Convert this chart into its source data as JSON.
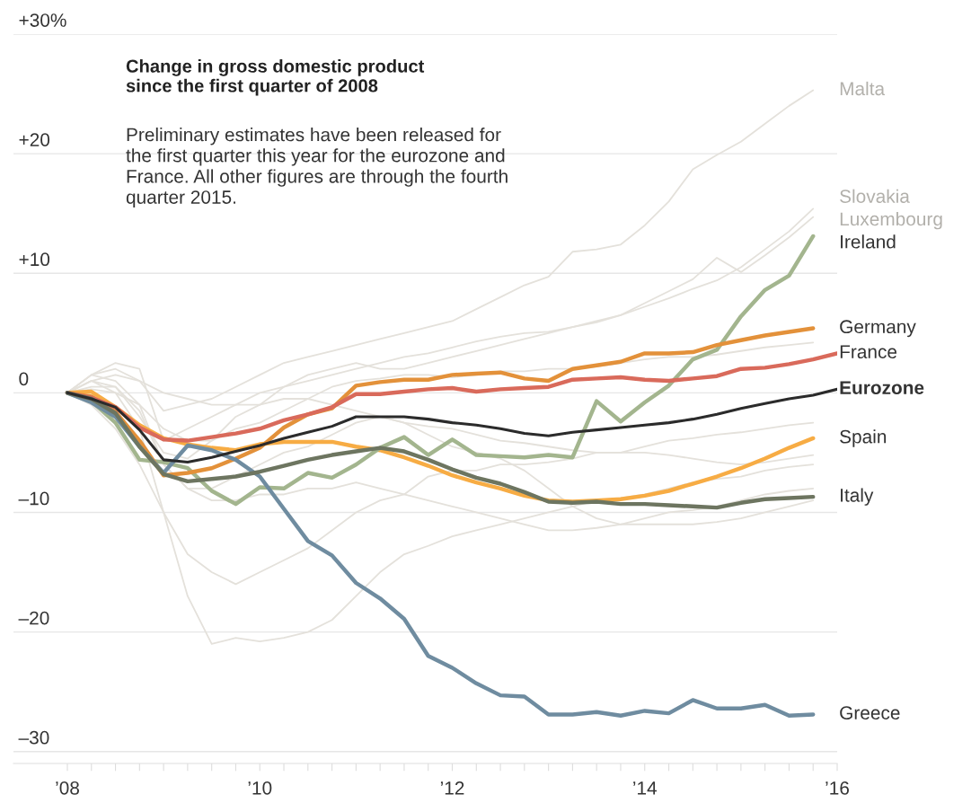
{
  "chart_data": {
    "type": "line",
    "title": "Change in gross domestic product\nsince the first quarter of 2008",
    "subtitle": "Preliminary estimates have been released for\nthe first quarter this year for the eurozone and\nFrance. All other figures are through the fourth\nquarter 2015.",
    "x": [
      2008,
      2008.25,
      2008.5,
      2008.75,
      2009,
      2009.25,
      2009.5,
      2009.75,
      2010,
      2010.25,
      2010.5,
      2010.75,
      2011,
      2011.25,
      2011.5,
      2011.75,
      2012,
      2012.25,
      2012.5,
      2012.75,
      2013,
      2013.25,
      2013.5,
      2013.75,
      2014,
      2014.25,
      2014.5,
      2014.75,
      2015,
      2015.25,
      2015.5,
      2015.75,
      2016
    ],
    "xlim": [
      2007.44,
      2016
    ],
    "xticks": [
      {
        "value": 2008,
        "label": "’08"
      },
      {
        "value": 2008.25,
        "label": null
      },
      {
        "value": 2008.5,
        "label": null
      },
      {
        "value": 2008.75,
        "label": null
      },
      {
        "value": 2009,
        "label": null
      },
      {
        "value": 2009.25,
        "label": null
      },
      {
        "value": 2009.5,
        "label": null
      },
      {
        "value": 2009.75,
        "label": null
      },
      {
        "value": 2010,
        "label": "’10"
      },
      {
        "value": 2010.25,
        "label": null
      },
      {
        "value": 2010.5,
        "label": null
      },
      {
        "value": 2010.75,
        "label": null
      },
      {
        "value": 2011,
        "label": null
      },
      {
        "value": 2011.25,
        "label": null
      },
      {
        "value": 2011.5,
        "label": null
      },
      {
        "value": 2011.75,
        "label": null
      },
      {
        "value": 2012,
        "label": "’12"
      },
      {
        "value": 2012.25,
        "label": null
      },
      {
        "value": 2012.5,
        "label": null
      },
      {
        "value": 2012.75,
        "label": null
      },
      {
        "value": 2013,
        "label": null
      },
      {
        "value": 2013.25,
        "label": null
      },
      {
        "value": 2013.5,
        "label": null
      },
      {
        "value": 2013.75,
        "label": null
      },
      {
        "value": 2014,
        "label": "’14"
      },
      {
        "value": 2014.25,
        "label": null
      },
      {
        "value": 2014.5,
        "label": null
      },
      {
        "value": 2014.75,
        "label": null
      },
      {
        "value": 2015,
        "label": null
      },
      {
        "value": 2015.25,
        "label": null
      },
      {
        "value": 2015.5,
        "label": null
      },
      {
        "value": 2015.75,
        "label": null
      },
      {
        "value": 2016,
        "label": "’16"
      }
    ],
    "ylim": [
      -31,
      30
    ],
    "yticks": [
      {
        "value": -30,
        "label": "–30"
      },
      {
        "value": -20,
        "label": "–20"
      },
      {
        "value": -10,
        "label": "–10"
      },
      0,
      {
        "value": 10,
        "label": "+10"
      },
      {
        "value": 20,
        "label": "+20"
      },
      {
        "value": 30,
        "label": "+30%"
      }
    ],
    "grid": "y",
    "legend": false,
    "series": [
      {
        "color": "#e4e1db",
        "values": [
          0,
          -1,
          -3,
          -6,
          -10,
          -13.5,
          -15,
          -16,
          -15,
          -14,
          -13,
          -11.5,
          -10,
          -9,
          -8.5,
          -7,
          -6.5,
          -6.5,
          -6,
          -6,
          -5.8,
          -5.5,
          -5,
          -5,
          -4.5,
          -4,
          -3.8,
          -3.5,
          -3.3,
          -3,
          -2.7,
          -2.5,
          null
        ]
      },
      {
        "color": "#e4e1db",
        "values": [
          0,
          1,
          0,
          -3,
          -10,
          -17,
          -21,
          -20.5,
          -20.8,
          -20.5,
          -20,
          -19,
          -17,
          -15,
          -13.5,
          -12.8,
          -12,
          -11.5,
          -11,
          -10.5,
          -10,
          -9.5,
          -9,
          -8.8,
          -8.5,
          -8,
          -7.5,
          -7.2,
          -7,
          -6.5,
          -6.2,
          -6,
          null
        ]
      },
      {
        "color": "#e4e1db",
        "values": [
          0,
          1,
          1.5,
          1,
          0,
          -0.5,
          -1,
          -1,
          -1,
          -0.5,
          -0.5,
          -1,
          -1.5,
          -2,
          -2.5,
          -3.5,
          -4.5,
          -5,
          -5.5,
          -6.5,
          -8,
          -9.5,
          -10.5,
          -11,
          -11,
          -11,
          -11,
          -10.8,
          -10.5,
          -10,
          -9.5,
          -9,
          null
        ]
      },
      {
        "color": "#e4e1db",
        "values": [
          0,
          1.5,
          1,
          -1,
          -6,
          -8,
          -8,
          -7,
          -6,
          -5,
          -4.5,
          -3.5,
          -2.5,
          -2,
          -2.5,
          -2.8,
          -3,
          -3.5,
          -4,
          -4.2,
          -4.5,
          -4.8,
          -5,
          -5,
          -5,
          -5.2,
          -5.5,
          -5.8,
          -6,
          -5.8,
          -5.5,
          -5.2,
          null
        ]
      },
      {
        "color": "#e4e1db",
        "values": [
          0,
          0.5,
          0.5,
          -1.5,
          -6,
          -8,
          -9,
          -9,
          -8.5,
          -8.5,
          -8,
          -8,
          -7.5,
          -8,
          -8.5,
          -9,
          -9.5,
          -10,
          -10.5,
          -11,
          -11.5,
          -11.5,
          -11.3,
          -11,
          -10.5,
          -10,
          -9.8,
          -9.5,
          -9,
          -8.5,
          -8.2,
          -8,
          null
        ]
      },
      {
        "color": "#e4e1db",
        "values": [
          0,
          0.3,
          0,
          -1,
          -3,
          -4,
          -4,
          -3,
          -2.5,
          -1.5,
          -0.5,
          0.5,
          1,
          1.2,
          1.5,
          1.5,
          1.3,
          1.5,
          1.8,
          1.8,
          2,
          2,
          2.2,
          2.5,
          2.8,
          3,
          3,
          3.2,
          3.5,
          3.8,
          4,
          4.2,
          null
        ]
      },
      {
        "name": "Malta",
        "color": "#e4e1db",
        "values": [
          0,
          1.5,
          2.0,
          1.0,
          -1.5,
          -1.0,
          -0.5,
          0.5,
          1.5,
          2.5,
          3.0,
          3.5,
          4.0,
          4.5,
          5.0,
          5.5,
          6.0,
          7.0,
          8.0,
          9.0,
          9.7,
          11.8,
          12.0,
          12.4,
          14.0,
          16.0,
          18.7,
          19.9,
          21.0,
          22.5,
          24.0,
          25.3,
          null
        ]
      },
      {
        "name": "Slovakia",
        "color": "#e4e1db",
        "values": [
          0,
          1.5,
          2.5,
          2.0,
          -4.0,
          -3.0,
          -2.0,
          -1.0,
          0,
          0.5,
          1.0,
          1.5,
          2.0,
          2.5,
          3.0,
          3.3,
          3.8,
          4.3,
          4.7,
          5.0,
          5.1,
          5.5,
          5.9,
          6.5,
          7.2,
          7.9,
          8.7,
          9.4,
          10.5,
          12.0,
          13.5,
          15.4,
          null
        ]
      },
      {
        "name": "Luxembourg",
        "color": "#e4e1db",
        "values": [
          0,
          1.0,
          0.5,
          -2.0,
          -5.0,
          -5.5,
          -4.0,
          -2.0,
          -1.0,
          0.5,
          1.5,
          2.0,
          2.5,
          2.0,
          2.0,
          2.5,
          3.0,
          3.5,
          4.0,
          4.5,
          5.0,
          5.5,
          6.0,
          6.5,
          7.5,
          8.5,
          9.5,
          11.3,
          10.1,
          11.5,
          13.0,
          14.7,
          null
        ]
      },
      {
        "name": "Greece",
        "color": "#6f8ca0",
        "values": [
          0,
          -0.8,
          -2,
          -4.5,
          -6.7,
          -4.4,
          -4.8,
          -5.6,
          -7,
          -9.7,
          -12.4,
          -13.6,
          -15.9,
          -17.2,
          -18.9,
          -22,
          -23,
          -24.3,
          -25.3,
          -25.4,
          -26.9,
          -26.9,
          -26.7,
          -27,
          -26.6,
          -26.8,
          -25.7,
          -26.4,
          -26.4,
          -26.1,
          -27,
          -26.9,
          null
        ]
      },
      {
        "name": "Ireland",
        "color": "#a3b58e",
        "values": [
          0,
          -0.7,
          -2.5,
          -5.6,
          -5.8,
          -6.3,
          -8.2,
          -9.3,
          -7.9,
          -8.0,
          -6.7,
          -7.1,
          -6.0,
          -4.6,
          -3.7,
          -5.2,
          -3.9,
          -5.2,
          -5.3,
          -5.4,
          -5.2,
          -5.4,
          -0.7,
          -2.4,
          -0.8,
          0.6,
          2.8,
          3.6,
          6.4,
          8.6,
          9.8,
          13.1,
          null
        ]
      },
      {
        "name": "Italy",
        "color": "#6d7560",
        "values": [
          0,
          -0.5,
          -1.7,
          -4.5,
          -6.8,
          -7.4,
          -7.2,
          -7.0,
          -6.6,
          -6.1,
          -5.6,
          -5.2,
          -4.9,
          -4.6,
          -4.9,
          -5.6,
          -6.4,
          -7.1,
          -7.6,
          -8.3,
          -9.1,
          -9.2,
          -9.1,
          -9.3,
          -9.3,
          -9.4,
          -9.5,
          -9.6,
          -9.2,
          -8.9,
          -8.8,
          -8.7,
          null
        ]
      },
      {
        "name": "Spain",
        "color": "#f7ac44",
        "values": [
          0,
          0.1,
          -1.2,
          -2.7,
          -3.8,
          -4.3,
          -4.6,
          -4.8,
          -4.3,
          -4.1,
          -4.1,
          -4.1,
          -4.5,
          -4.8,
          -5.4,
          -6.1,
          -6.9,
          -7.5,
          -8.0,
          -8.6,
          -9.0,
          -9.1,
          -9.0,
          -8.9,
          -8.6,
          -8.2,
          -7.6,
          -7.0,
          -6.3,
          -5.5,
          -4.6,
          -3.8,
          null
        ]
      },
      {
        "name": "France",
        "color": "#d96a5b",
        "values": [
          0,
          -0.4,
          -1.2,
          -2.9,
          -3.9,
          -4.0,
          -3.7,
          -3.4,
          -3.0,
          -2.3,
          -1.8,
          -1.2,
          -0.1,
          -0.1,
          0.1,
          0.3,
          0.4,
          0.1,
          0.3,
          0.4,
          0.5,
          1.1,
          1.2,
          1.3,
          1.1,
          1.0,
          1.2,
          1.4,
          2.0,
          2.1,
          2.4,
          2.8,
          3.3
        ]
      },
      {
        "name": "Germany",
        "color": "#e3913a",
        "values": [
          0,
          -0.3,
          -1.6,
          -4.0,
          -6.9,
          -6.7,
          -6.3,
          -5.5,
          -4.6,
          -2.9,
          -1.8,
          -1.3,
          0.6,
          0.9,
          1.1,
          1.1,
          1.5,
          1.6,
          1.7,
          1.2,
          1.0,
          2.0,
          2.3,
          2.6,
          3.3,
          3.3,
          3.4,
          4.0,
          4.4,
          4.8,
          5.1,
          5.4,
          null
        ]
      },
      {
        "name": "Eurozone",
        "color": "#2b2b2b",
        "values": [
          0,
          -0.5,
          -1.2,
          -3.1,
          -5.6,
          -5.8,
          -5.4,
          -4.9,
          -4.4,
          -3.8,
          -3.3,
          -2.8,
          -2.0,
          -2.0,
          -2.0,
          -2.2,
          -2.5,
          -2.7,
          -3.0,
          -3.4,
          -3.6,
          -3.3,
          -3.1,
          -2.9,
          -2.7,
          -2.5,
          -2.2,
          -1.8,
          -1.3,
          -0.9,
          -0.5,
          -0.2,
          0.3
        ]
      }
    ]
  }
}
